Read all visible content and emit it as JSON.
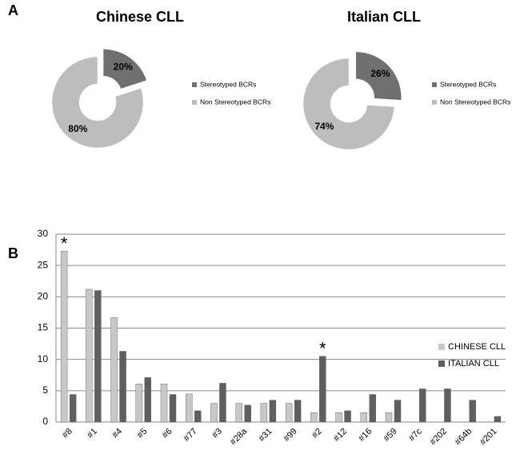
{
  "panels": [
    "A",
    "B"
  ],
  "chart_data": [
    {
      "type": "pie",
      "title": "Chinese CLL",
      "categories": [
        "Stereotyped BCRs",
        "Non Stereotyped BCRs"
      ],
      "values": [
        20,
        80
      ],
      "value_labels": [
        "20%",
        "80%"
      ],
      "colors": [
        "#707070",
        "#bdbdbd"
      ],
      "explode": "Stereotyped BCRs"
    },
    {
      "type": "pie",
      "title": "Italian CLL",
      "categories": [
        "Stereotyped BCRs",
        "Non Stereotyped BCRs"
      ],
      "values": [
        26,
        74
      ],
      "value_labels": [
        "26%",
        "74%"
      ],
      "colors": [
        "#707070",
        "#bdbdbd"
      ],
      "explode": "Stereotyped BCRs"
    },
    {
      "type": "bar",
      "categories": [
        "#8",
        "#1",
        "#4",
        "#5",
        "#6",
        "#77",
        "#3",
        "#28a",
        "#31",
        "#99",
        "#2",
        "#12",
        "#16",
        "#59",
        "#7c",
        "#202",
        "#64b",
        "#201"
      ],
      "series": [
        {
          "name": "CHINESE CLL",
          "color": "#c8c8c8",
          "values": [
            27.3,
            21.2,
            16.7,
            6.1,
            6.1,
            4.5,
            3.0,
            3.0,
            3.0,
            3.0,
            1.5,
            1.5,
            1.5,
            1.5,
            0,
            0,
            0,
            0
          ]
        },
        {
          "name": "ITALIAN CLL",
          "color": "#5f5f5f",
          "values": [
            4.4,
            21.0,
            11.3,
            7.1,
            4.4,
            1.8,
            6.2,
            2.7,
            3.5,
            3.5,
            10.5,
            1.8,
            4.4,
            3.5,
            5.3,
            5.3,
            3.5,
            0.9
          ]
        }
      ],
      "ylim": [
        0,
        30
      ],
      "yticks": [
        0,
        5,
        10,
        15,
        20,
        25,
        30
      ],
      "grid": true,
      "legend": "right",
      "annotations": [
        {
          "text": "*",
          "category": "#8",
          "series": "CHINESE CLL"
        },
        {
          "text": "*",
          "category": "#2",
          "series": "ITALIAN CLL"
        }
      ]
    }
  ]
}
